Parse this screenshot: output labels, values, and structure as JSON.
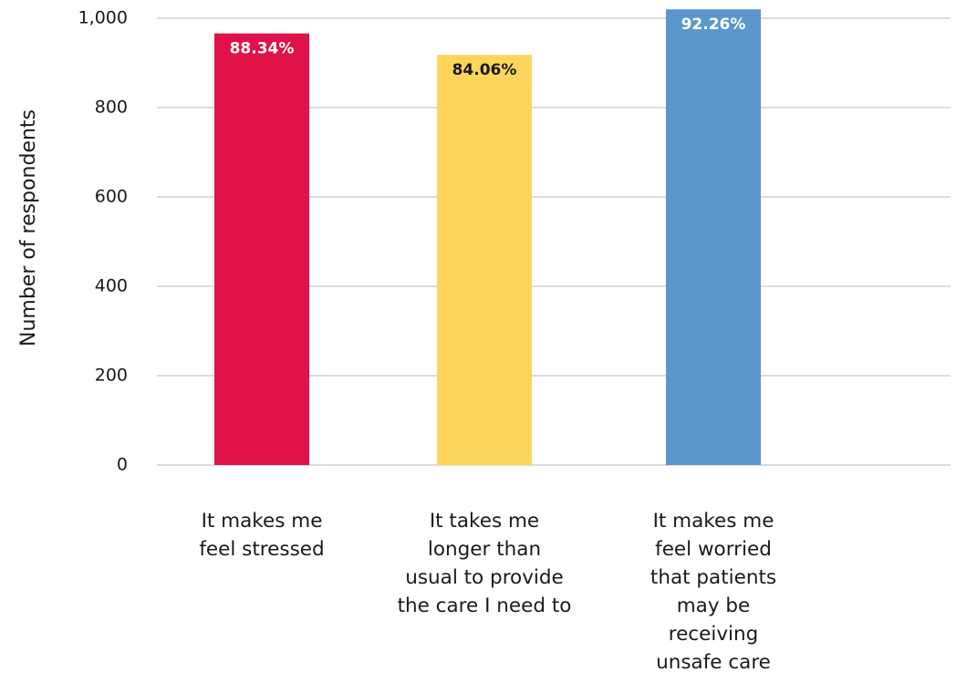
{
  "chart_data": {
    "type": "bar",
    "ylabel": "Number of respondents",
    "ylim": [
      0,
      1000
    ],
    "yticks": [
      0,
      200,
      400,
      600,
      800,
      1000
    ],
    "ytick_labels": [
      "0",
      "200",
      "400",
      "600",
      "800",
      "1,000"
    ],
    "grid": true,
    "categories": [
      [
        "It makes me",
        "feel stressed"
      ],
      [
        "It takes me",
        "longer than",
        "usual to provide",
        "the care I need to"
      ],
      [
        "It makes me",
        "feel worried",
        "that patients",
        "may be",
        "receiving",
        "unsafe care"
      ]
    ],
    "values": [
      966,
      918,
      1020
    ],
    "data_labels": [
      "88.34%",
      "84.06%",
      "92.26%"
    ],
    "colors": [
      "#e0124a",
      "#fdd55a",
      "#5b97cc"
    ],
    "label_colors": [
      "#ffffff",
      "#1a1a1a",
      "#ffffff"
    ]
  }
}
